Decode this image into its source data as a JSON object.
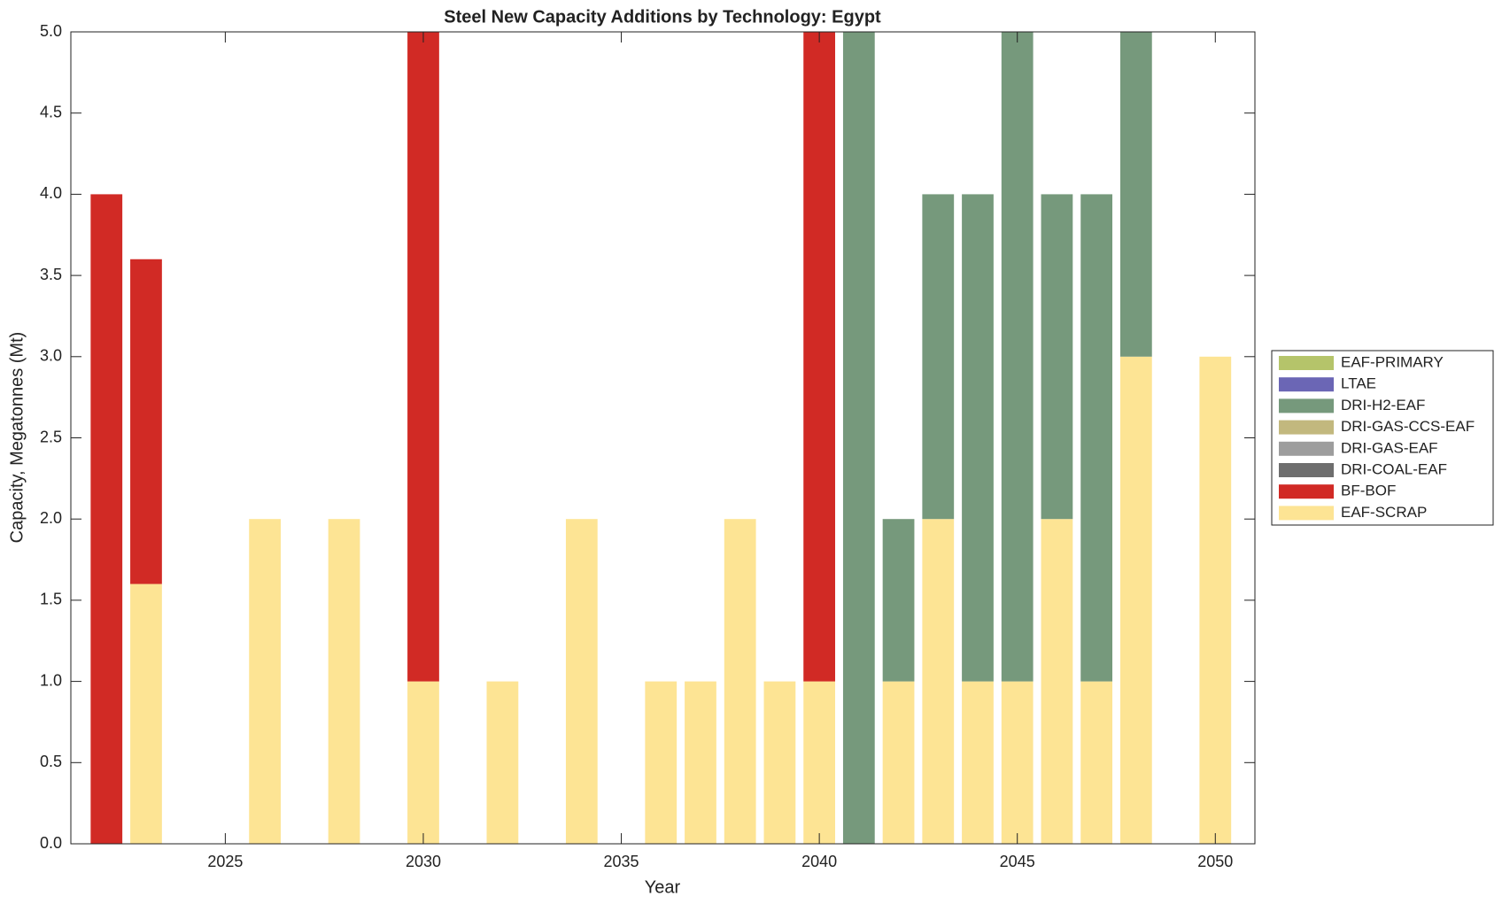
{
  "chart_data": {
    "type": "bar",
    "stacked": true,
    "title": "Steel New Capacity Additions by Technology: Egypt",
    "x_label": "Year",
    "y_label": "Capacity, Megatonnes (Mt)",
    "x": [
      2022,
      2023,
      2024,
      2025,
      2026,
      2027,
      2028,
      2029,
      2030,
      2031,
      2032,
      2033,
      2034,
      2035,
      2036,
      2037,
      2038,
      2039,
      2040,
      2041,
      2042,
      2043,
      2044,
      2045,
      2046,
      2047,
      2048,
      2049,
      2050
    ],
    "series": [
      {
        "name": "EAF-PRIMARY",
        "color": "#b5c46a",
        "values": [
          0,
          0,
          0,
          0,
          0,
          0,
          0,
          0,
          0,
          0,
          0,
          0,
          0,
          0,
          0,
          0,
          0,
          0,
          0,
          0,
          0,
          0,
          0,
          0,
          0,
          0,
          0,
          0,
          0
        ]
      },
      {
        "name": "LTAE",
        "color": "#6b66b5",
        "values": [
          0,
          0,
          0,
          0,
          0,
          0,
          0,
          0,
          0,
          0,
          0,
          0,
          0,
          0,
          0,
          0,
          0,
          0,
          0,
          0,
          0,
          0,
          0,
          0,
          0,
          0,
          0,
          0,
          0
        ]
      },
      {
        "name": "DRI-H2-EAF",
        "color": "#76997c",
        "values": [
          0,
          0,
          0,
          0,
          0,
          0,
          0,
          0,
          0,
          0,
          0,
          0,
          0,
          0,
          0,
          0,
          0,
          0,
          0,
          5,
          1,
          2,
          3,
          4,
          2,
          3,
          2,
          0,
          0
        ]
      },
      {
        "name": "DRI-GAS-CCS-EAF",
        "color": "#c2b87e",
        "values": [
          0,
          0,
          0,
          0,
          0,
          0,
          0,
          0,
          0,
          0,
          0,
          0,
          0,
          0,
          0,
          0,
          0,
          0,
          0,
          0,
          0,
          0,
          0,
          0,
          0,
          0,
          0,
          0,
          0
        ]
      },
      {
        "name": "DRI-GAS-EAF",
        "color": "#9d9d9d",
        "values": [
          0,
          0,
          0,
          0,
          0,
          0,
          0,
          0,
          0,
          0,
          0,
          0,
          0,
          0,
          0,
          0,
          0,
          0,
          0,
          0,
          0,
          0,
          0,
          0,
          0,
          0,
          0,
          0,
          0
        ]
      },
      {
        "name": "DRI-COAL-EAF",
        "color": "#6e6e6e",
        "values": [
          0,
          0,
          0,
          0,
          0,
          0,
          0,
          0,
          0,
          0,
          0,
          0,
          0,
          0,
          0,
          0,
          0,
          0,
          0,
          0,
          0,
          0,
          0,
          0,
          0,
          0,
          0,
          0,
          0
        ]
      },
      {
        "name": "BF-BOF",
        "color": "#d12a25",
        "values": [
          4,
          2,
          0,
          0,
          0,
          0,
          0,
          0,
          4,
          0,
          0,
          0,
          0,
          0,
          0,
          0,
          0,
          0,
          4,
          0,
          0,
          0,
          0,
          0,
          0,
          0,
          0,
          0,
          0
        ]
      },
      {
        "name": "EAF-SCRAP",
        "color": "#fde494",
        "values": [
          0,
          1.6,
          0,
          0,
          2,
          0,
          2,
          0,
          1,
          0,
          1,
          0,
          2,
          0,
          1,
          1,
          2,
          1,
          1,
          0,
          1,
          2,
          1,
          1,
          2,
          1,
          3,
          0,
          3
        ]
      }
    ],
    "xlim": [
      2021.1,
      2051
    ],
    "xticks": [
      2025,
      2030,
      2035,
      2040,
      2045,
      2050
    ],
    "ylim": [
      0,
      5
    ],
    "yticks": [
      {
        "value": 0,
        "label": "0.0"
      },
      0.5,
      {
        "value": 1,
        "label": "1.0"
      },
      1.5,
      {
        "value": 2,
        "label": "2.0"
      },
      2.5,
      {
        "value": 3,
        "label": "3.0"
      },
      3.5,
      {
        "value": 4,
        "label": "4.0"
      },
      4.5,
      {
        "value": 5,
        "label": "5.0"
      }
    ],
    "bar_width": 0.8,
    "legend": "outside-right"
  }
}
